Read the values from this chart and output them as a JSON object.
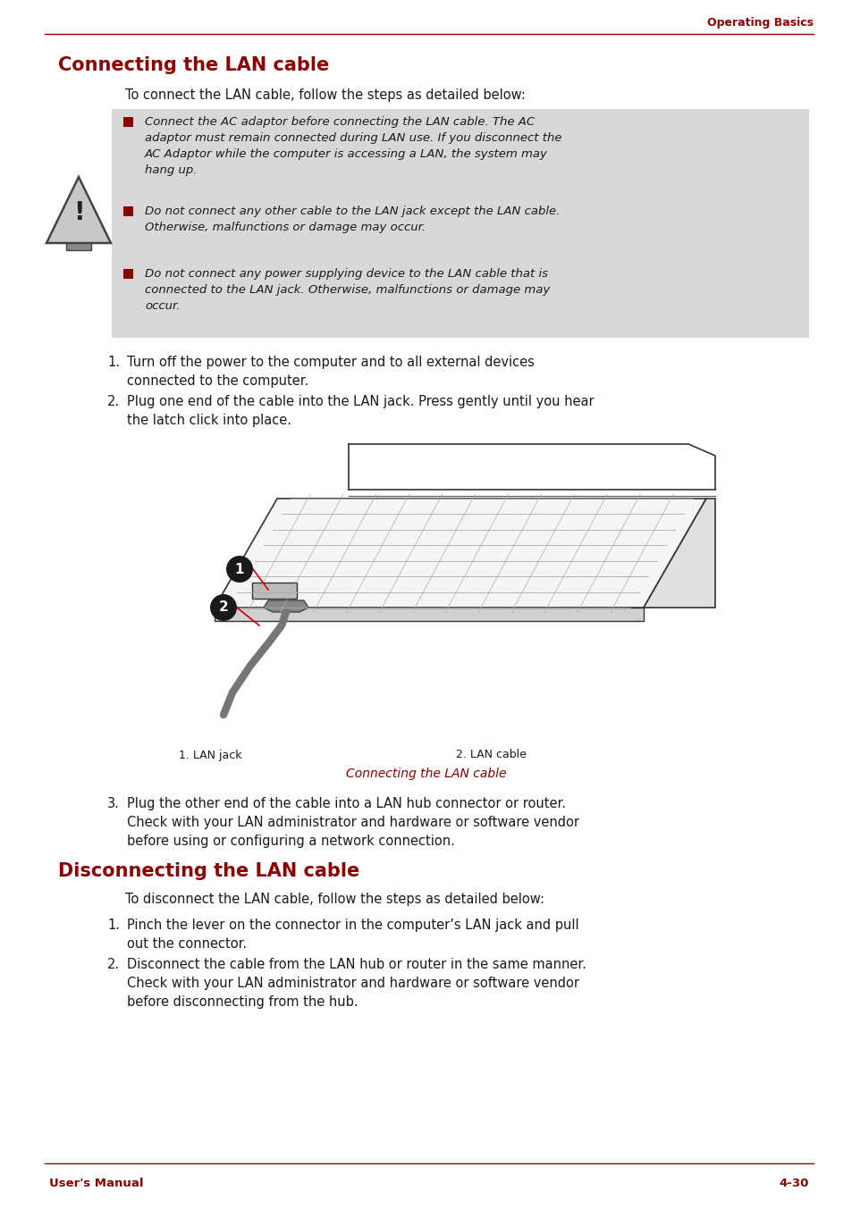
{
  "page_bg": "#ffffff",
  "header_text": "Operating Basics",
  "header_color": "#8B0000",
  "header_line_color": "#8B0000",
  "title1": "Connecting the LAN cable",
  "title1_color": "#8B0000",
  "title2": "Disconnecting the LAN cable",
  "title2_color": "#8B0000",
  "warning_bg": "#d8d8d8",
  "warning_bullet_color": "#8B0000",
  "body_text_color": "#1a1a1a",
  "caption_color": "#8B0000",
  "footer_color": "#8B0000",
  "footer_left": "User's Manual",
  "footer_right": "4-30",
  "intro1": "To connect the LAN cable, follow the steps as detailed below:",
  "warning_items": [
    "Connect the AC adaptor before connecting the LAN cable. The AC\nadaptor must remain connected during LAN use. If you disconnect the\nAC Adaptor while the computer is accessing a LAN, the system may\nhang up.",
    "Do not connect any other cable to the LAN jack except the LAN cable.\nOtherwise, malfunctions or damage may occur.",
    "Do not connect any power supplying device to the LAN cable that is\nconnected to the LAN jack. Otherwise, malfunctions or damage may\noccur."
  ],
  "steps1_num": [
    "1.",
    "2."
  ],
  "steps1": [
    "Turn off the power to the computer and to all external devices\nconnected to the computer.",
    "Plug one end of the cable into the LAN jack. Press gently until you hear\nthe latch click into place."
  ],
  "label1": "1. LAN jack",
  "label2": "2. LAN cable",
  "caption": "Connecting the LAN cable",
  "step3_num": "3.",
  "step3": "Plug the other end of the cable into a LAN hub connector or router.\nCheck with your LAN administrator and hardware or software vendor\nbefore using or configuring a network connection.",
  "intro2": "To disconnect the LAN cable, follow the steps as detailed below:",
  "steps2_num": [
    "1.",
    "2."
  ],
  "steps2": [
    "Pinch the lever on the connector in the computer’s LAN jack and pull\nout the connector.",
    "Disconnect the cable from the LAN hub or router in the same manner.\nCheck with your LAN administrator and hardware or software vendor\nbefore disconnecting from the hub."
  ]
}
